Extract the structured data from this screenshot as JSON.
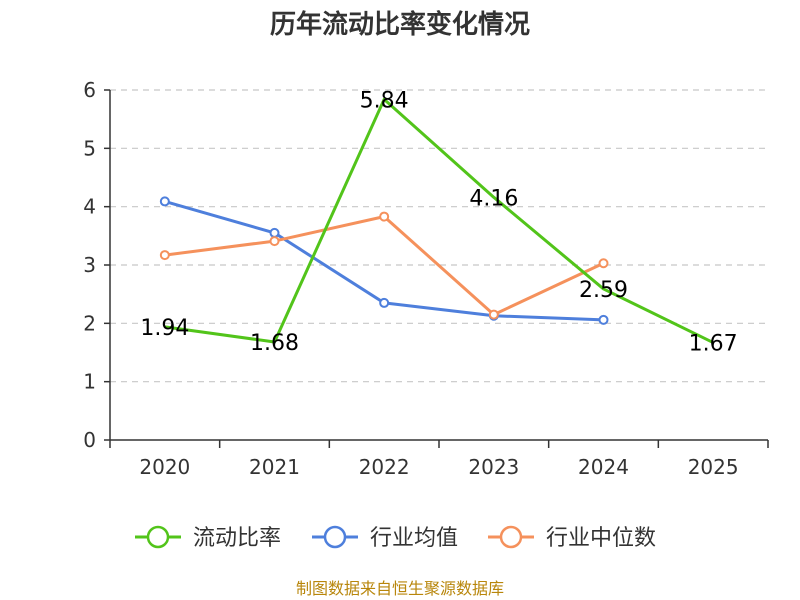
{
  "chart_data": {
    "type": "line",
    "title": "历年流动比率变化情况",
    "categories": [
      "2020",
      "2021",
      "2022",
      "2023",
      "2024",
      "2025"
    ],
    "ylim": [
      0,
      6
    ],
    "yticks": [
      0,
      1,
      2,
      3,
      4,
      5,
      6
    ],
    "grid": true,
    "legend_position": "bottom",
    "series": [
      {
        "name": "流动比率",
        "color": "#52c41a",
        "values": [
          1.94,
          1.68,
          5.84,
          4.16,
          2.59,
          1.67
        ],
        "show_labels": true,
        "labels": [
          "1.94",
          "1.68",
          "5.84",
          "4.16",
          "2.59",
          "1.67"
        ],
        "markers": false
      },
      {
        "name": "行业均值",
        "color": "#4e7fdc",
        "values": [
          4.09,
          3.55,
          2.35,
          2.13,
          2.06,
          null
        ],
        "show_labels": false,
        "markers": true
      },
      {
        "name": "行业中位数",
        "color": "#f5915c",
        "values": [
          3.17,
          3.41,
          3.83,
          2.15,
          3.03,
          null
        ],
        "show_labels": false,
        "markers": true
      }
    ],
    "source": "制图数据来自恒生聚源数据库"
  }
}
